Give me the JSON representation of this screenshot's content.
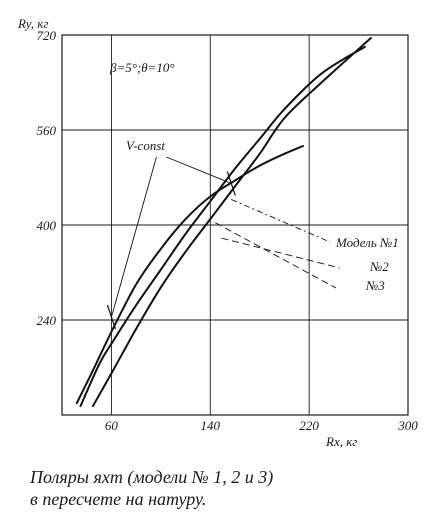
{
  "chart_data": {
    "type": "line",
    "ylabel": "Ry, кг",
    "xlabel": "Rx, кг",
    "xlim": [
      20,
      300
    ],
    "ylim": [
      80,
      720
    ],
    "x_ticks": [
      60,
      140,
      220,
      300
    ],
    "y_ticks": [
      240,
      400,
      560,
      720
    ],
    "x_tick_labels": [
      "60",
      "140",
      "220",
      "300"
    ],
    "y_tick_labels": [
      "240",
      "400",
      "560",
      "720"
    ],
    "grid": true,
    "condition_label": "β=5°;θ=10°",
    "v_const_label": "V-const",
    "v_const_points": [
      [
        60,
        245
      ],
      [
        157,
        470
      ]
    ],
    "series": [
      {
        "name": "Модель №1",
        "values": [
          [
            32,
            100
          ],
          [
            45,
            155
          ],
          [
            60,
            220
          ],
          [
            80,
            300
          ],
          [
            100,
            360
          ],
          [
            120,
            410
          ],
          [
            140,
            448
          ],
          [
            160,
            475
          ],
          [
            180,
            500
          ],
          [
            200,
            520
          ],
          [
            215,
            533
          ]
        ],
        "label_anchor": [
          157,
          443
        ]
      },
      {
        "name": "№2",
        "values": [
          [
            45,
            95
          ],
          [
            60,
            150
          ],
          [
            80,
            225
          ],
          [
            100,
            295
          ],
          [
            120,
            355
          ],
          [
            140,
            410
          ],
          [
            160,
            465
          ],
          [
            180,
            520
          ],
          [
            200,
            580
          ],
          [
            230,
            640
          ],
          [
            270,
            715
          ]
        ],
        "label_anchor": [
          149,
          378
        ]
      },
      {
        "name": "№3",
        "values": [
          [
            35,
            95
          ],
          [
            50,
            165
          ],
          [
            60,
            200
          ],
          [
            80,
            265
          ],
          [
            100,
            325
          ],
          [
            120,
            385
          ],
          [
            140,
            440
          ],
          [
            160,
            495
          ],
          [
            180,
            545
          ],
          [
            200,
            595
          ],
          [
            230,
            655
          ],
          [
            265,
            700
          ]
        ],
        "label_anchor": [
          144,
          404
        ]
      }
    ]
  },
  "caption": {
    "line1": "Поляры яхт (модели № 1, 2 и 3)",
    "line2": "в пересчете на натуру."
  }
}
